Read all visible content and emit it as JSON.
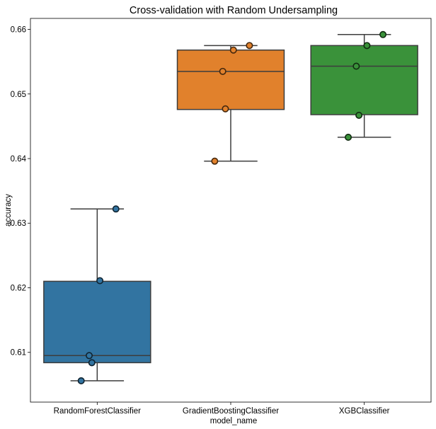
{
  "chart_data": {
    "type": "box",
    "title": "Cross-validation with Random Undersampling",
    "xlabel": "model_name",
    "ylabel": "accuracy",
    "ylim": [
      0.6023,
      0.6617
    ],
    "yticks": [
      0.61,
      0.62,
      0.63,
      0.64,
      0.65,
      0.66
    ],
    "ytick_labels": [
      "0.61",
      "0.62",
      "0.63",
      "0.64",
      "0.65",
      "0.66"
    ],
    "grid": false,
    "categories": [
      "RandomForestClassifier",
      "GradientBoostingClassifier",
      "XGBClassifier"
    ],
    "series": [
      {
        "category": "RandomForestClassifier",
        "color": "#3274a1",
        "whisker_low": 0.6056,
        "q1": 0.6084,
        "median": 0.6095,
        "q3": 0.621,
        "whisker_high": 0.6322,
        "points": [
          0.6322,
          0.6211,
          0.6095,
          0.6084,
          0.6056
        ]
      },
      {
        "category": "GradientBoostingClassifier",
        "color": "#e1812c",
        "whisker_low": 0.6396,
        "q1": 0.6476,
        "median": 0.6535,
        "q3": 0.6568,
        "whisker_high": 0.6575,
        "points": [
          0.6575,
          0.6568,
          0.6535,
          0.6477,
          0.6396
        ]
      },
      {
        "category": "XGBClassifier",
        "color": "#3a923a",
        "whisker_low": 0.6433,
        "q1": 0.6468,
        "median": 0.6543,
        "q3": 0.6575,
        "whisker_high": 0.6592,
        "points": [
          0.6592,
          0.6575,
          0.6543,
          0.6467,
          0.6433
        ]
      }
    ]
  }
}
